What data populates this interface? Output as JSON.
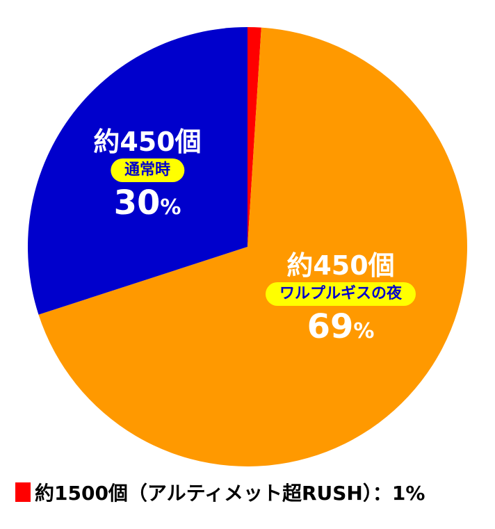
{
  "chart_data": {
    "type": "pie",
    "start": "top",
    "direction": "clockwise",
    "slices": [
      {
        "key": "rush",
        "value": 1,
        "color": "#ff0000"
      },
      {
        "key": "walpurgis",
        "value": 69,
        "color": "#ff9900",
        "count": "約450個",
        "name": "ワルプルギスの夜",
        "pct": "69",
        "unit": "%"
      },
      {
        "key": "normal",
        "value": 30,
        "color": "#0000cc",
        "count": "約450個",
        "name": "通常時",
        "pct": "30",
        "unit": "%"
      }
    ],
    "legend": {
      "text": "約1500個（アルティメット超RUSH）：1%",
      "color": "#ff0000",
      "placement": "bottom-left"
    }
  }
}
